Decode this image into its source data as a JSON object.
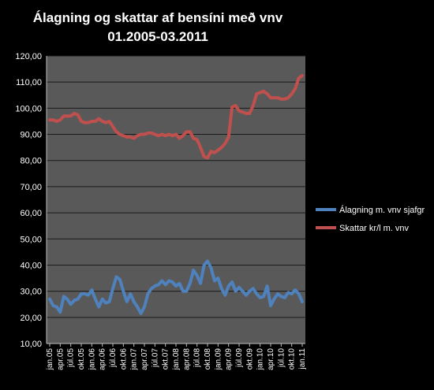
{
  "chart_data": {
    "type": "line",
    "title": "Álagning og skattar af bensíni með vnv",
    "subtitle": "01.2005-03.2011",
    "ylim": [
      10,
      120
    ],
    "y_ticks": [
      "10,00",
      "20,00",
      "30,00",
      "40,00",
      "50,00",
      "60,00",
      "70,00",
      "80,00",
      "90,00",
      "100,00",
      "110,00",
      "120,00"
    ],
    "y_tick_values": [
      10,
      20,
      30,
      40,
      50,
      60,
      70,
      80,
      90,
      100,
      110,
      120
    ],
    "x_tick_labels": [
      "jan.05",
      "apr.05",
      "júl.05",
      "okt.05",
      "jan.06",
      "apr.06",
      "júl.06",
      "okt.06",
      "jan.07",
      "apr.07",
      "júl.07",
      "okt.07",
      "jan.08",
      "apr.08",
      "júl.08",
      "okt.08",
      "jan.09",
      "apr.09",
      "júl.09",
      "okt.09",
      "jan.10",
      "apr.10",
      "júl.10",
      "okt.10",
      "jan.11"
    ],
    "grid": true,
    "plot_background": "#595959",
    "legend_position": "right",
    "series": [
      {
        "name": "Álagning m. vnv sjafgr",
        "color": "#4f81bd",
        "values": [
          27,
          24.5,
          24,
          22,
          28,
          27,
          25,
          26.5,
          27,
          29,
          29,
          28.5,
          30.5,
          27,
          24,
          27,
          25.5,
          26,
          31,
          35.5,
          34.5,
          30,
          26,
          29,
          26,
          24,
          21.5,
          24,
          29,
          31,
          32,
          32.5,
          34,
          32.5,
          34,
          33.5,
          32,
          33,
          30,
          30,
          33,
          38,
          36,
          33,
          40,
          41.5,
          39,
          34,
          35,
          31,
          28.5,
          32,
          33.5,
          30,
          31.5,
          30,
          28.5,
          30,
          31,
          29,
          27.5,
          28,
          32,
          24.5,
          27,
          29,
          28,
          27.5,
          29.5,
          29,
          30.5,
          29,
          26
        ]
      },
      {
        "name": "Skattar kr/l m. vnv",
        "color": "#c0504d",
        "values": [
          95.5,
          95.5,
          95,
          95.5,
          97,
          97,
          97,
          98,
          97.5,
          95,
          94.5,
          94.5,
          95,
          95,
          96,
          95,
          94.5,
          95,
          93,
          91,
          90,
          89.5,
          89,
          89,
          88.5,
          89.5,
          90,
          90,
          90.5,
          90.5,
          90,
          89.5,
          90,
          89.5,
          90,
          89.5,
          90,
          88.5,
          89.5,
          91,
          91,
          88.5,
          88,
          85,
          81.5,
          81,
          83.5,
          83,
          84,
          85,
          86.5,
          89,
          100.5,
          101,
          99,
          98.5,
          98,
          98,
          101,
          105.5,
          106,
          106.5,
          105.5,
          104,
          104,
          104,
          103.5,
          103.5,
          104,
          105.5,
          107.5,
          111.5,
          112.5
        ]
      }
    ]
  }
}
